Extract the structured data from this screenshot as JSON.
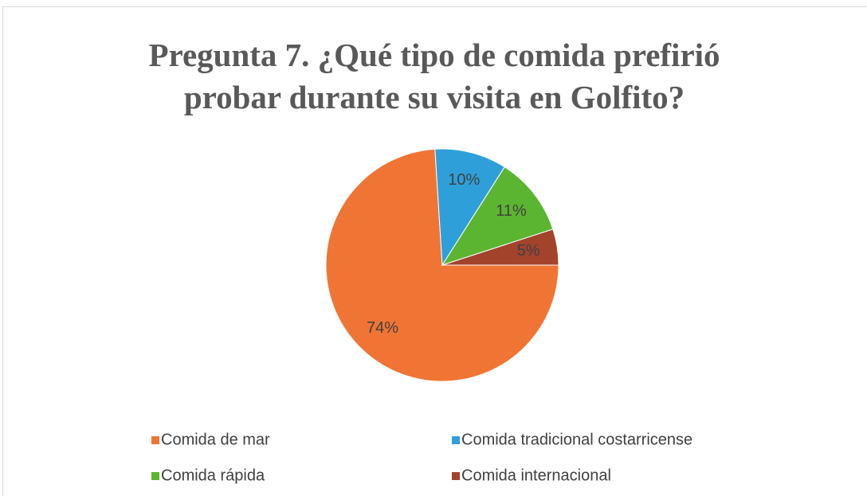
{
  "chart_data": {
    "type": "pie",
    "title": "Pregunta 7. ¿Qué tipo de comida prefirió probar durante su visita en Golfito?",
    "categories": [
      "Comida de mar",
      "Comida tradicional costarricense",
      "Comida rápida",
      "Comida internacional"
    ],
    "values": [
      74,
      10,
      11,
      5
    ],
    "value_labels": [
      "74%",
      "10%",
      "11%",
      "5%"
    ],
    "colors": [
      "#f07535",
      "#2f9fda",
      "#5cb531",
      "#a3432c"
    ]
  }
}
